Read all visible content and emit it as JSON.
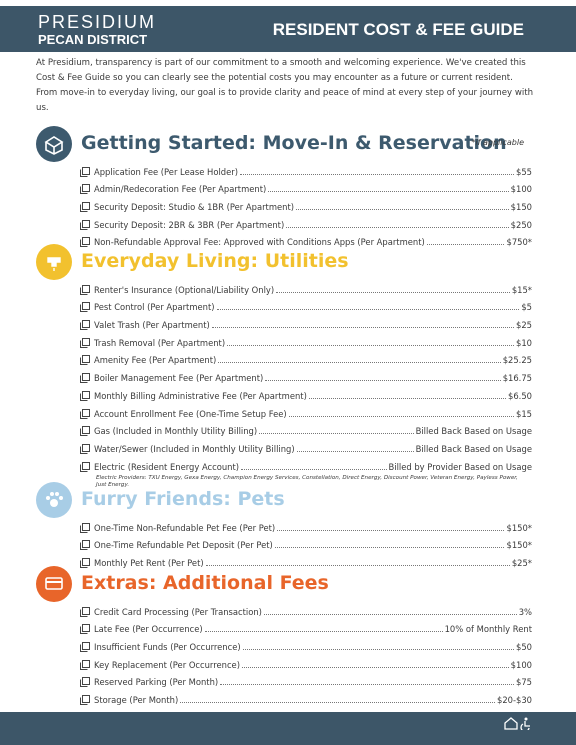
{
  "header": {
    "brand": "PRESIDIUM",
    "sub": "PECAN DISTRICT",
    "title": "RESIDENT COST & FEE GUIDE"
  },
  "intro": "At Presidium, transparency is part of our commitment to a smooth and welcoming experience. We've created this Cost & Fee Guide so you can clearly see the potential costs you may encounter as a future or current resident. From move-in to everyday living, our goal is to provide clarity and peace of mind at every step of your journey with us.",
  "sections": [
    {
      "title": "Getting Started: Move-In & Reservation",
      "note": "*if applicable",
      "items": [
        {
          "label": "Application Fee (Per Lease Holder)",
          "price": "$55"
        },
        {
          "label": "Admin/Redecoration Fee (Per Apartment)",
          "price": "$100"
        },
        {
          "label": "Security Deposit: Studio & 1BR (Per Apartment)",
          "price": "$150"
        },
        {
          "label": "Security Deposit: 2BR & 3BR (Per Apartment)",
          "price": "$250"
        },
        {
          "label": "Non-Refundable Approval Fee: Approved with Conditions Apps (Per Apartment)",
          "price": "$750*"
        }
      ]
    },
    {
      "title": "Everyday Living: Utilities",
      "items": [
        {
          "label": "Renter's Insurance (Optional/Liability Only)",
          "price": "$15*"
        },
        {
          "label": "Pest Control (Per Apartment)",
          "price": "$5"
        },
        {
          "label": "Valet Trash (Per Apartment)",
          "price": "$25"
        },
        {
          "label": "Trash Removal (Per Apartment)",
          "price": "$10"
        },
        {
          "label": "Amenity Fee (Per Apartment)",
          "price": "$25.25"
        },
        {
          "label": "Boiler Management Fee (Per Apartment)",
          "price": "$16.75"
        },
        {
          "label": "Monthly Billing Administrative Fee (Per Apartment)",
          "price": "$6.50"
        },
        {
          "label": "Account Enrollment Fee (One-Time Setup Fee)",
          "price": "$15"
        },
        {
          "label": "Gas (Included in Monthly Utility Billing)",
          "price": "Billed Back Based on Usage"
        },
        {
          "label": "Water/Sewer (Included in Monthly Utility Billing)",
          "price": "Billed Back Based on Usage"
        },
        {
          "label": "Electric (Resident Energy Account)",
          "price": "Billed by Provider Based on Usage"
        }
      ],
      "footnote": "Electric Providers: TXU Energy, Gexa Energy, Champion Energy Services, Constellation, Direct Energy, Discount Power, Veteran Energy, Payless Power, Just Energy."
    },
    {
      "title": "Furry Friends: Pets",
      "items": [
        {
          "label": "One-Time Non-Refundable Pet Fee (Per Pet)",
          "price": "$150*"
        },
        {
          "label": "One-Time Refundable Pet Deposit (Per Pet)",
          "price": "$150*"
        },
        {
          "label": "Monthly Pet Rent (Per Pet)",
          "price": "$25*"
        }
      ]
    },
    {
      "title": "Extras: Additional Fees",
      "items": [
        {
          "label": "Credit Card Processing (Per Transaction)",
          "price": "3%"
        },
        {
          "label": "Late Fee (Per Occurrence)",
          "price": "10% of Monthly Rent"
        },
        {
          "label": "Insufficient Funds (Per Occurrence)",
          "price": "$50"
        },
        {
          "label": "Key Replacement (Per Occurrence)",
          "price": "$100"
        },
        {
          "label": "Reserved Parking (Per Month)",
          "price": "$75"
        },
        {
          "label": "Storage (Per Month)",
          "price": "$20-$30"
        }
      ]
    }
  ]
}
